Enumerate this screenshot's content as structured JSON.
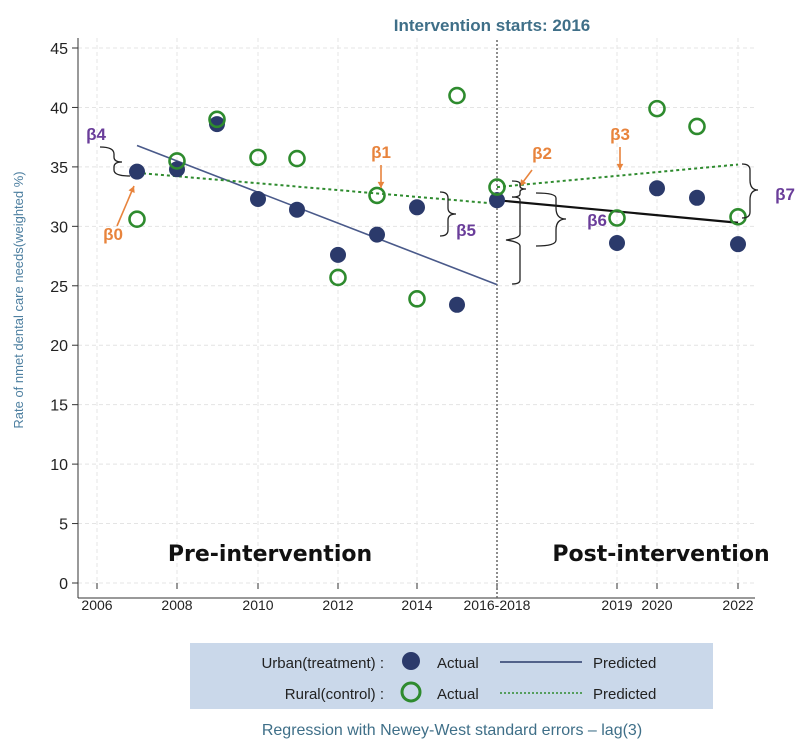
{
  "chart_data": {
    "type": "scatter",
    "title": "Intervention starts: 2016",
    "subtitle": "Regression with Newey-West standard errors – lag(3)",
    "xlabel": "",
    "ylabel": "Rate of nmet dental care needs(weighted %)",
    "ylim": [
      0,
      45
    ],
    "yticks": [
      0,
      5,
      10,
      15,
      20,
      25,
      30,
      35,
      40,
      45
    ],
    "xlim": [
      2006,
      2022
    ],
    "xtick_labels": [
      "2006",
      "2008",
      "2010",
      "2012",
      "2014",
      "2016-2018",
      "2019",
      "2020",
      "2022"
    ],
    "grid": true,
    "series": [
      {
        "name": "Urban(treatment)",
        "marker": "filled-circle",
        "color": "#2b3a6b",
        "points": [
          {
            "x": 2007,
            "y": 34.6
          },
          {
            "x": 2008,
            "y": 34.8
          },
          {
            "x": 2009,
            "y": 38.6
          },
          {
            "x": 2010,
            "y": 32.3
          },
          {
            "x": 2011,
            "y": 31.4
          },
          {
            "x": 2012,
            "y": 27.6
          },
          {
            "x": 2013,
            "y": 29.3
          },
          {
            "x": 2014,
            "y": 31.6
          },
          {
            "x": 2015,
            "y": 23.4
          },
          {
            "x": 2016,
            "y": 32.2
          },
          {
            "x": 2019,
            "y": 28.6
          },
          {
            "x": 2020,
            "y": 33.2
          },
          {
            "x": 2021,
            "y": 32.4
          },
          {
            "x": 2022,
            "y": 28.5
          }
        ]
      },
      {
        "name": "Rural(control)",
        "marker": "hollow-circle",
        "color": "#2e8b2e",
        "points": [
          {
            "x": 2007,
            "y": 30.6
          },
          {
            "x": 2008,
            "y": 35.5
          },
          {
            "x": 2009,
            "y": 39.0
          },
          {
            "x": 2010,
            "y": 35.8
          },
          {
            "x": 2011,
            "y": 35.7
          },
          {
            "x": 2012,
            "y": 25.7
          },
          {
            "x": 2013,
            "y": 32.6
          },
          {
            "x": 2014,
            "y": 23.9
          },
          {
            "x": 2015,
            "y": 41.0
          },
          {
            "x": 2016,
            "y": 33.3
          },
          {
            "x": 2019,
            "y": 30.7
          },
          {
            "x": 2020,
            "y": 39.9
          },
          {
            "x": 2021,
            "y": 38.4
          },
          {
            "x": 2022,
            "y": 30.8
          }
        ]
      }
    ],
    "fit_lines": [
      {
        "series": "Urban(treatment)",
        "segment": "pre",
        "color": "#4a5a8a",
        "style": "solid",
        "from": {
          "x": 2007,
          "y": 36.8
        },
        "to": {
          "x": 2016,
          "y": 25.1
        }
      },
      {
        "series": "Urban(treatment)",
        "segment": "post",
        "color": "#111111",
        "style": "solid",
        "from": {
          "x": 2016,
          "y": 32.2
        },
        "to": {
          "x": 2022,
          "y": 30.3
        }
      },
      {
        "series": "Rural(control)",
        "segment": "pre",
        "color": "#2e8b2e",
        "style": "dotted",
        "from": {
          "x": 2007,
          "y": 34.5
        },
        "to": {
          "x": 2016,
          "y": 31.9
        }
      },
      {
        "series": "Rural(control)",
        "segment": "post",
        "color": "#2e8b2e",
        "style": "dotted",
        "from": {
          "x": 2016,
          "y": 33.3
        },
        "to": {
          "x": 2022,
          "y": 35.2
        }
      }
    ],
    "intervention_x": 2016,
    "annotations": [
      {
        "text": "β0",
        "color": "#e8843d"
      },
      {
        "text": "β1",
        "color": "#e8843d"
      },
      {
        "text": "β2",
        "color": "#e8843d"
      },
      {
        "text": "β3",
        "color": "#e8843d"
      },
      {
        "text": "β4",
        "color": "#6a3d9a"
      },
      {
        "text": "β5",
        "color": "#6a3d9a"
      },
      {
        "text": "β6",
        "color": "#6a3d9a"
      },
      {
        "text": "β7",
        "color": "#6a3d9a"
      }
    ],
    "phase_labels": [
      "Pre-intervention",
      "Post-intervention"
    ],
    "legend": {
      "placement": "bottom",
      "rows": [
        {
          "label": "Urban(treatment) :",
          "actual": "Actual",
          "predicted": "Predicted"
        },
        {
          "label": "Rural(control) :",
          "actual": "Actual",
          "predicted": "Predicted"
        }
      ]
    }
  }
}
